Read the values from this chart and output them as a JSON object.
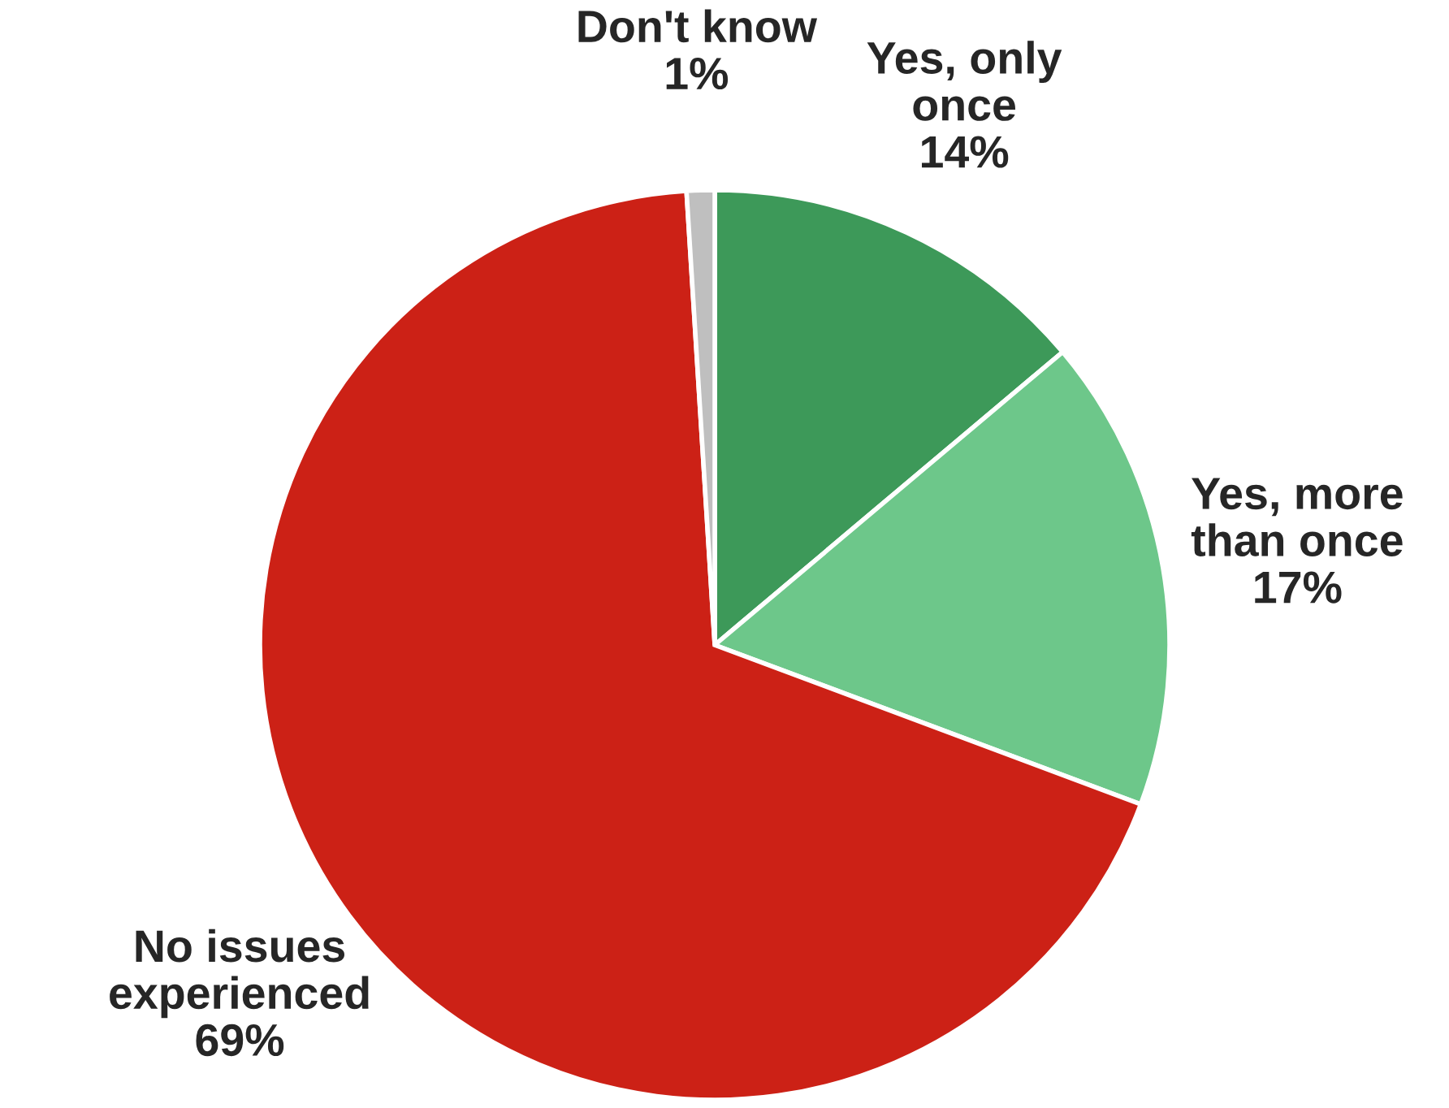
{
  "chart_data": {
    "type": "pie",
    "categories": [
      "Yes, only\nonce",
      "Yes, more\nthan once",
      "No issues\nexperienced",
      "Don't know"
    ],
    "values": [
      14,
      17,
      69,
      1
    ],
    "value_labels": [
      "14%",
      "17%",
      "69%",
      "1%"
    ],
    "colors": [
      "#3d9959",
      "#6dc78a",
      "#cc2116",
      "#bfbfbf"
    ],
    "legend": false
  }
}
